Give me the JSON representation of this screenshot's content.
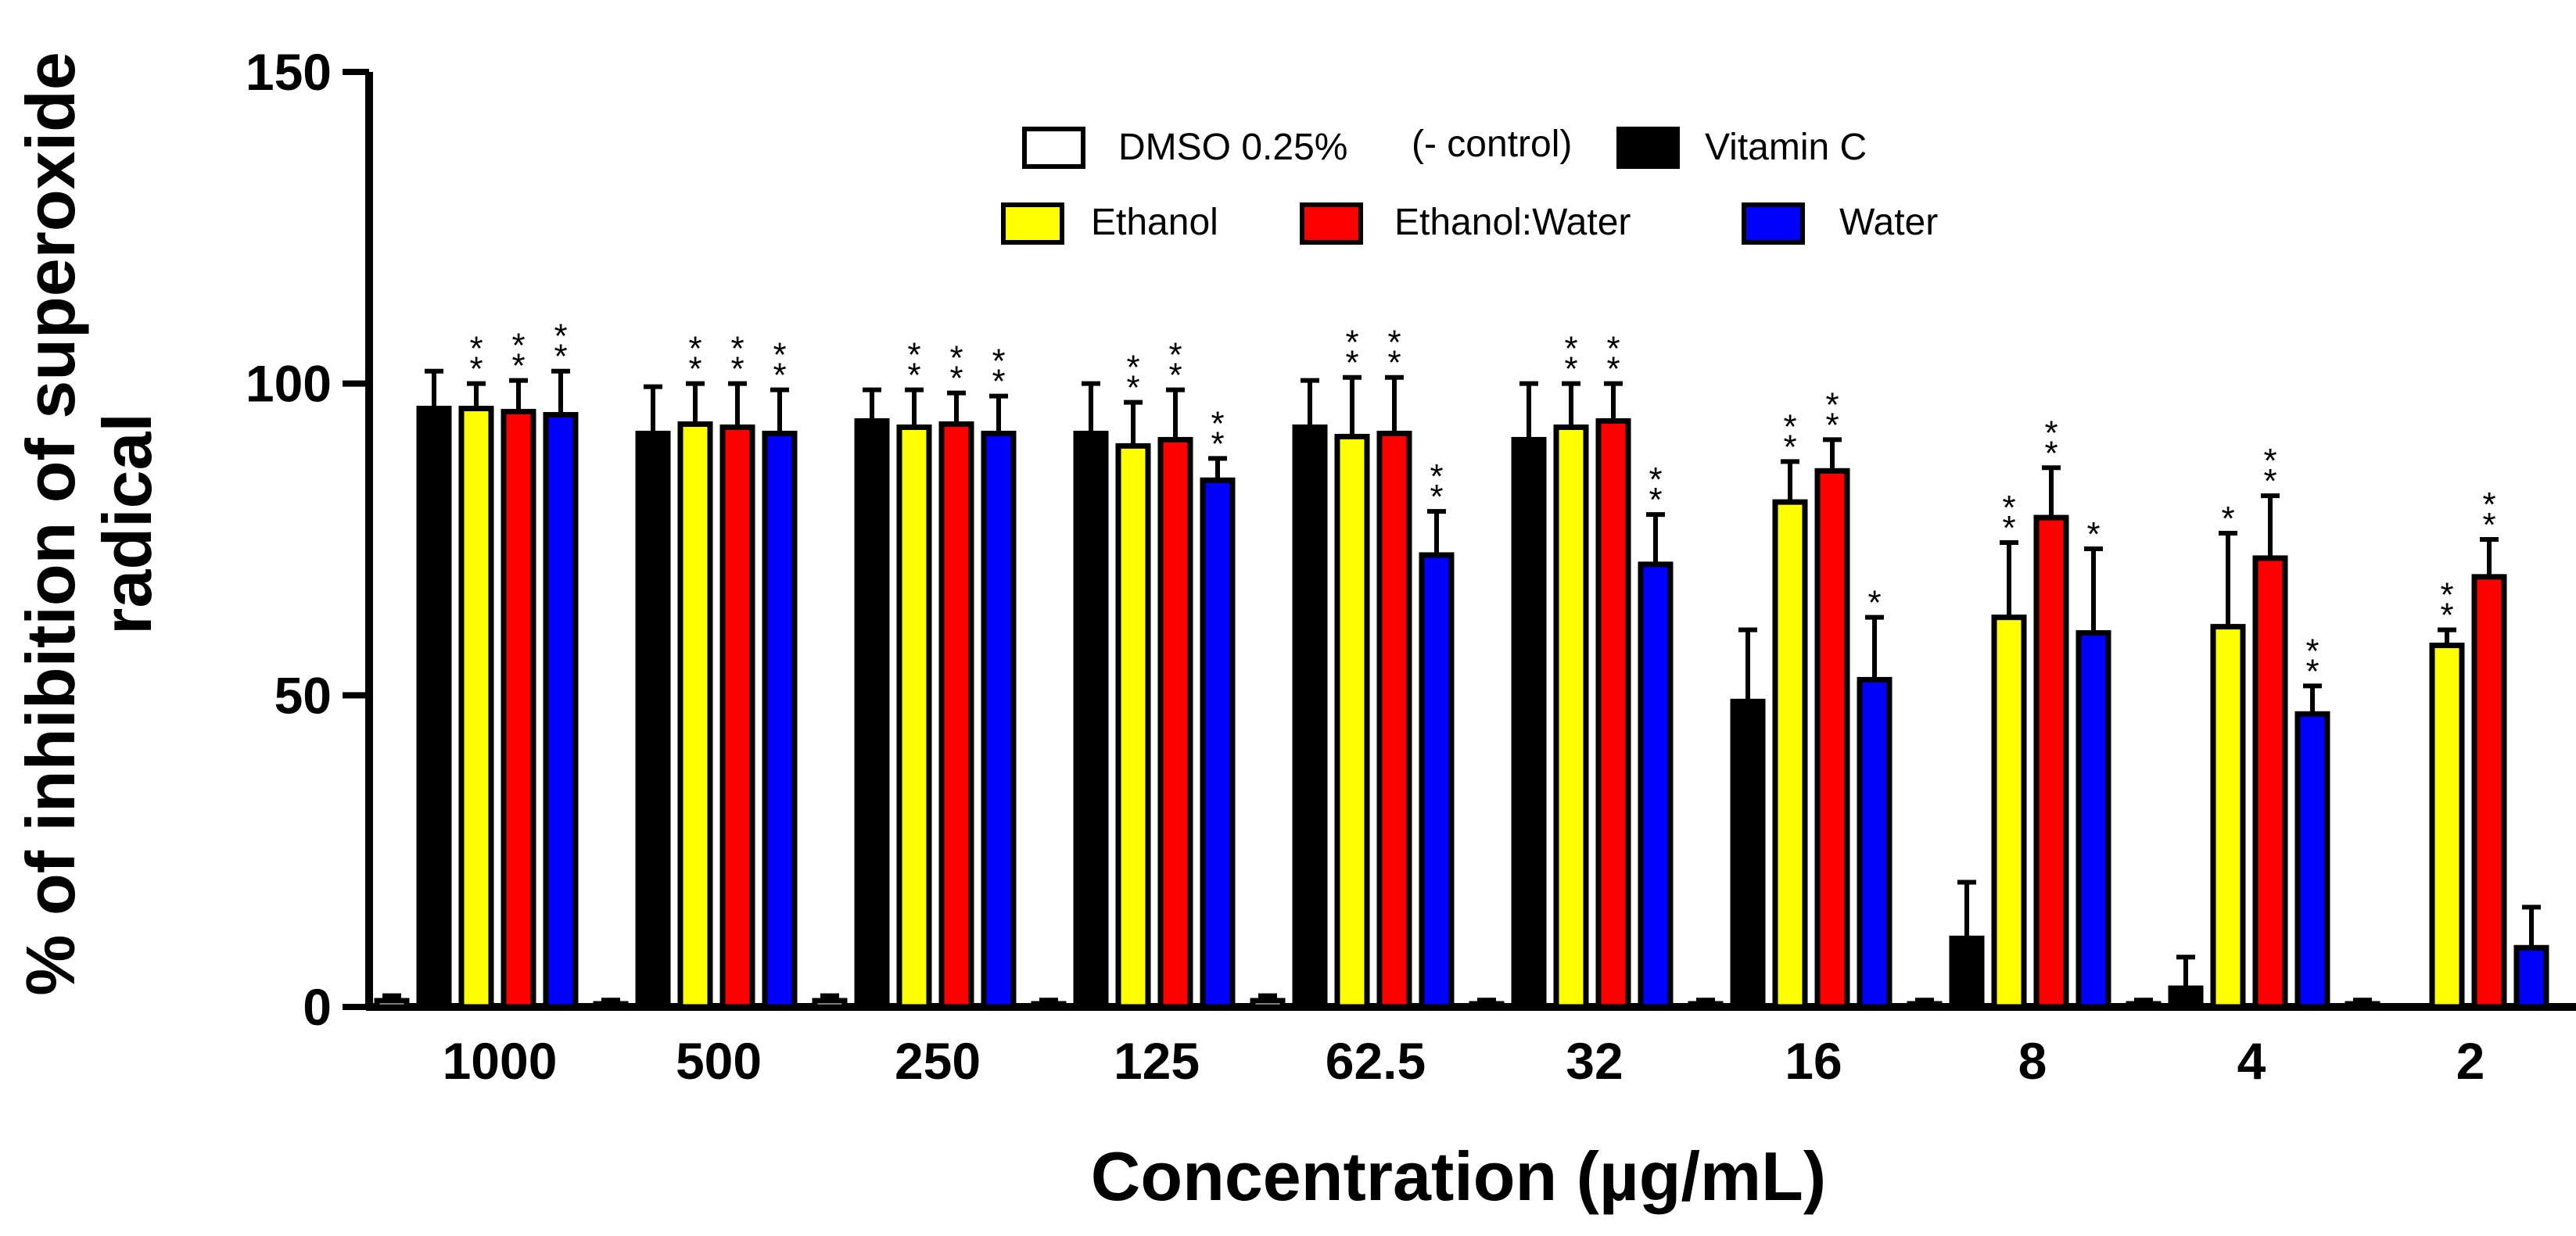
{
  "chart_data": {
    "type": "bar",
    "title": "",
    "xlabel": "Concentration (µg/mL)",
    "ylabel": [
      "% of inhibition of superoxide",
      "radical"
    ],
    "ylim": [
      0,
      150
    ],
    "yticks": [
      "0",
      "50",
      "100",
      "150"
    ],
    "categories": [
      "1000",
      "500",
      "250",
      "125",
      "62.5",
      "32",
      "16",
      "8",
      "4",
      "2"
    ],
    "series": [
      {
        "name": "DMSO 0.25%",
        "legend_suffix": "(- control)",
        "color": "#ffffff",
        "values": [
          1,
          0.5,
          1,
          0.5,
          1,
          0.5,
          0.5,
          0.5,
          0.5,
          0.5
        ],
        "errors": [
          0.8,
          0.6,
          0.8,
          0.6,
          0.8,
          0.6,
          0.6,
          0.6,
          0.6,
          0.6
        ],
        "significance": [
          "",
          "",
          "",
          "",
          "",
          "",
          "",
          "",
          "",
          ""
        ]
      },
      {
        "name": "Vitamin C",
        "color": "#000000",
        "values": [
          96,
          92,
          94,
          92,
          93,
          91,
          49,
          11,
          3,
          0
        ],
        "errors": [
          6,
          7.5,
          5,
          8,
          7.5,
          9,
          11.5,
          9,
          5,
          0
        ],
        "significance": [
          "",
          "",
          "",
          "",
          "",
          "",
          "",
          "",
          "",
          ""
        ]
      },
      {
        "name": "Ethanol",
        "color": "#ffff00",
        "values": [
          96,
          93.5,
          93,
          90,
          91.5,
          93,
          81,
          62.5,
          61,
          58
        ],
        "errors": [
          4,
          6.5,
          6,
          7,
          9.5,
          7,
          6.5,
          12,
          15,
          2.5
        ],
        "significance": [
          "**",
          "**",
          "**",
          "**",
          "**",
          "**",
          "**",
          "**",
          "*",
          "**"
        ]
      },
      {
        "name": "Ethanol:Water",
        "color": "#ff0000",
        "values": [
          95.5,
          93,
          93.5,
          91,
          92,
          94,
          86,
          78.5,
          72,
          69
        ],
        "errors": [
          5,
          7,
          5,
          8,
          9,
          6,
          5,
          8,
          10,
          6
        ],
        "significance": [
          "**",
          "**",
          "**",
          "**",
          "**",
          "**",
          "**",
          "**",
          "**",
          "**"
        ]
      },
      {
        "name": "Water",
        "color": "#0000ff",
        "values": [
          95,
          92,
          92,
          84.5,
          72.5,
          71,
          52.5,
          60,
          47,
          9.5
        ],
        "errors": [
          7,
          7,
          6,
          3.5,
          7,
          8,
          10,
          13.5,
          4.5,
          6.5
        ],
        "significance": [
          "**",
          "**",
          "**",
          "**",
          "**",
          "**",
          "*",
          "*",
          "**",
          ""
        ]
      }
    ],
    "legend_position": "top-center"
  }
}
